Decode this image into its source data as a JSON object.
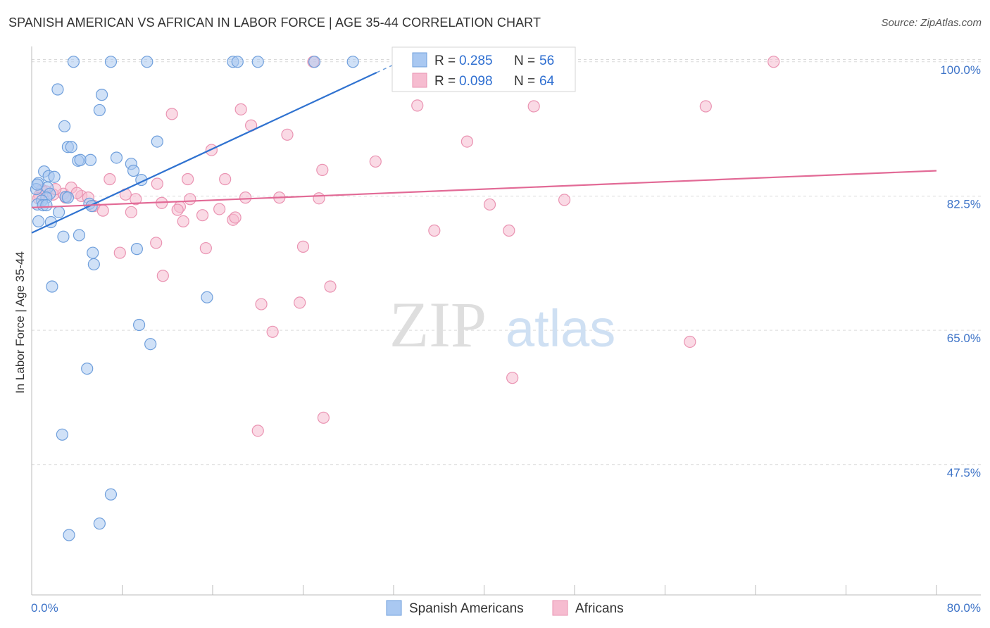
{
  "title": "SPANISH AMERICAN VS AFRICAN IN LABOR FORCE | AGE 35-44 CORRELATION CHART",
  "source": "Source: ZipAtlas.com",
  "watermark": {
    "zip": "ZIP",
    "atlas": "atlas"
  },
  "colors": {
    "blue_fill": "#a9c8f1",
    "blue_stroke": "#6f9fdc",
    "blue_line": "#2f72d0",
    "pink_fill": "#f6bcd0",
    "pink_stroke": "#ea93b2",
    "pink_line": "#e26a96",
    "axis_label": "#3e74c8",
    "grid": "#d9d9d9"
  },
  "legend": {
    "r_label": "R =",
    "n_label": "N =",
    "rows": [
      {
        "series": "blue",
        "r": "0.285",
        "n": "56"
      },
      {
        "series": "pink",
        "r": "0.098",
        "n": "64"
      }
    ]
  },
  "bottom_legend": [
    {
      "series": "blue",
      "label": "Spanish Americans"
    },
    {
      "series": "pink",
      "label": "Africans"
    }
  ],
  "chart_data": {
    "type": "scatter",
    "title": "SPANISH AMERICAN VS AFRICAN IN LABOR FORCE | AGE 35-44 CORRELATION CHART",
    "xlabel": "",
    "ylabel": "In Labor Force | Age 35-44",
    "xlim": [
      0,
      80
    ],
    "ylim": [
      30.5,
      102
    ],
    "x_tick_labels": [
      "0.0%",
      "80.0%"
    ],
    "y_ticks": [
      {
        "value": 100,
        "label": "100.0%"
      },
      {
        "value": 82.5,
        "label": "82.5%"
      },
      {
        "value": 65,
        "label": "65.0%"
      },
      {
        "value": 47.5,
        "label": "47.5%"
      }
    ],
    "grid": "horizontal dashed",
    "series": [
      {
        "name": "Spanish Americans",
        "color": "blue",
        "r": 0.285,
        "n": 56,
        "trend": {
          "x": [
            0,
            30.5
          ],
          "y": [
            77.7,
            98.6
          ],
          "dashed_to": [
            33.0,
            100.3
          ]
        },
        "points": [
          [
            3.7,
            100
          ],
          [
            7.0,
            100
          ],
          [
            10.2,
            100
          ],
          [
            17.8,
            100
          ],
          [
            18.2,
            100
          ],
          [
            20.0,
            100
          ],
          [
            25.0,
            100
          ],
          [
            28.4,
            100
          ],
          [
            2.3,
            96.4
          ],
          [
            6.2,
            95.7
          ],
          [
            6.0,
            93.7
          ],
          [
            2.9,
            91.6
          ],
          [
            11.1,
            89.6
          ],
          [
            3.2,
            88.9
          ],
          [
            3.5,
            88.9
          ],
          [
            7.5,
            87.5
          ],
          [
            4.1,
            87.1
          ],
          [
            4.3,
            87.2
          ],
          [
            5.2,
            87.2
          ],
          [
            8.8,
            86.7
          ],
          [
            9.0,
            85.8
          ],
          [
            1.1,
            85.7
          ],
          [
            1.5,
            85.1
          ],
          [
            2.0,
            85.0
          ],
          [
            9.7,
            84.6
          ],
          [
            0.6,
            84.2
          ],
          [
            0.4,
            83.4
          ],
          [
            1.4,
            83.6
          ],
          [
            1.6,
            82.8
          ],
          [
            1.3,
            82.3
          ],
          [
            0.9,
            81.9
          ],
          [
            3.0,
            82.4
          ],
          [
            3.2,
            82.3
          ],
          [
            0.5,
            81.4
          ],
          [
            1.0,
            81.3
          ],
          [
            1.3,
            81.3
          ],
          [
            5.1,
            81.5
          ],
          [
            5.3,
            81.2
          ],
          [
            2.4,
            80.4
          ],
          [
            0.6,
            79.2
          ],
          [
            1.7,
            79.1
          ],
          [
            4.2,
            77.4
          ],
          [
            2.8,
            77.2
          ],
          [
            5.4,
            75.1
          ],
          [
            9.3,
            75.6
          ],
          [
            5.5,
            73.6
          ],
          [
            1.8,
            70.7
          ],
          [
            15.5,
            69.3
          ],
          [
            9.5,
            65.7
          ],
          [
            10.5,
            63.2
          ],
          [
            4.9,
            60.0
          ],
          [
            2.7,
            51.4
          ],
          [
            7.0,
            43.6
          ],
          [
            6.0,
            39.8
          ],
          [
            3.3,
            38.3
          ],
          [
            0.5,
            84.0
          ]
        ]
      },
      {
        "name": "Africans",
        "color": "pink",
        "r": 0.098,
        "n": 64,
        "trend": {
          "x": [
            0,
            80
          ],
          "y": [
            81.0,
            85.8
          ]
        },
        "points": [
          [
            24.9,
            100
          ],
          [
            32.9,
            100
          ],
          [
            65.6,
            100
          ],
          [
            18.5,
            93.8
          ],
          [
            12.4,
            93.2
          ],
          [
            34.1,
            94.3
          ],
          [
            44.4,
            94.2
          ],
          [
            59.6,
            94.2
          ],
          [
            19.4,
            91.7
          ],
          [
            22.6,
            90.5
          ],
          [
            38.5,
            89.6
          ],
          [
            15.9,
            88.5
          ],
          [
            30.4,
            87.0
          ],
          [
            6.9,
            84.7
          ],
          [
            13.8,
            84.7
          ],
          [
            17.1,
            84.7
          ],
          [
            11.1,
            84.1
          ],
          [
            0.9,
            83.3
          ],
          [
            1.3,
            83.1
          ],
          [
            0.7,
            82.6
          ],
          [
            1.9,
            82.7
          ],
          [
            2.8,
            82.8
          ],
          [
            3.0,
            82.3
          ],
          [
            4.4,
            82.5
          ],
          [
            5.0,
            82.3
          ],
          [
            8.3,
            82.7
          ],
          [
            9.2,
            82.1
          ],
          [
            14.0,
            82.1
          ],
          [
            18.9,
            82.3
          ],
          [
            21.9,
            82.3
          ],
          [
            25.4,
            82.2
          ],
          [
            40.5,
            81.4
          ],
          [
            47.1,
            82.0
          ],
          [
            11.5,
            81.6
          ],
          [
            13.1,
            81.1
          ],
          [
            5.5,
            81.2
          ],
          [
            6.3,
            80.6
          ],
          [
            8.8,
            80.4
          ],
          [
            12.9,
            80.7
          ],
          [
            16.6,
            80.8
          ],
          [
            15.1,
            80.0
          ],
          [
            17.8,
            79.4
          ],
          [
            18.0,
            79.7
          ],
          [
            13.4,
            79.2
          ],
          [
            35.6,
            78.0
          ],
          [
            42.2,
            78.0
          ],
          [
            11.0,
            76.4
          ],
          [
            15.4,
            75.7
          ],
          [
            24.0,
            75.9
          ],
          [
            7.8,
            75.1
          ],
          [
            11.6,
            72.1
          ],
          [
            26.4,
            70.7
          ],
          [
            20.3,
            68.4
          ],
          [
            23.7,
            68.6
          ],
          [
            21.3,
            64.8
          ],
          [
            58.2,
            63.5
          ],
          [
            42.5,
            58.8
          ],
          [
            25.8,
            53.6
          ],
          [
            20.0,
            51.9
          ],
          [
            3.5,
            83.6
          ],
          [
            2.1,
            83.4
          ],
          [
            0.6,
            82.2
          ],
          [
            4.0,
            82.9
          ],
          [
            25.7,
            85.9
          ]
        ]
      }
    ]
  }
}
